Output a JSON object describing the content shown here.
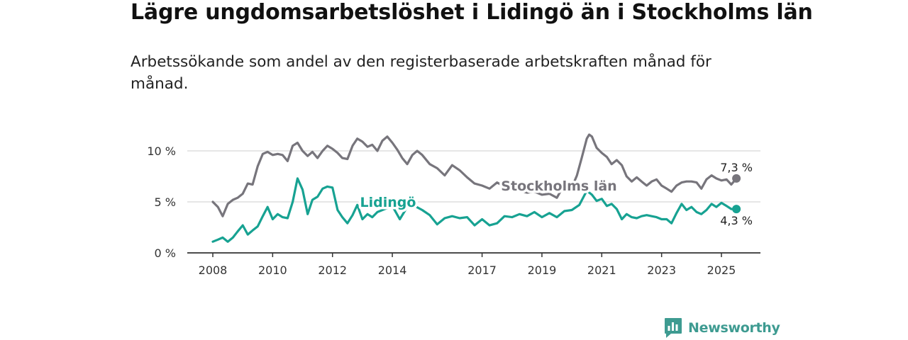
{
  "header": {
    "title": "Lägre ungdomsarbetslöshet i Lidingö än i Stockholms län",
    "subtitle": "Arbetssökande som andel av den registerbaserade arbetskraften månad för månad."
  },
  "brand": {
    "name": "Newsworthy",
    "logo_icon": "newsworthy-chart-bubble-icon",
    "color": "#3e9b91"
  },
  "chart_data": {
    "type": "line",
    "xlim": [
      2007.8,
      2025.9
    ],
    "ylim": [
      0,
      10
    ],
    "x_ticks": [
      {
        "value": 2008,
        "label": "2008"
      },
      {
        "value": 2010,
        "label": "2010"
      },
      {
        "value": 2012,
        "label": "2012"
      },
      {
        "value": 2014,
        "label": "2014"
      },
      {
        "value": 2017,
        "label": "2017"
      },
      {
        "value": 2019,
        "label": "2019"
      },
      {
        "value": 2021,
        "label": "2021"
      },
      {
        "value": 2023,
        "label": "2023"
      },
      {
        "value": 2025,
        "label": "2025"
      }
    ],
    "y_ticks": [
      {
        "value": 0,
        "label": "0 %"
      },
      {
        "value": 5,
        "label": "5 %"
      },
      {
        "value": 10,
        "label": "10 %"
      }
    ],
    "grid": true,
    "series": [
      {
        "name": "Stockholms län",
        "color": "#77757c",
        "end_label": "7,3 %",
        "points": [
          [
            2008.0,
            5.0
          ],
          [
            2008.17,
            4.5
          ],
          [
            2008.33,
            3.6
          ],
          [
            2008.5,
            4.8
          ],
          [
            2008.67,
            5.2
          ],
          [
            2008.83,
            5.4
          ],
          [
            2009.0,
            5.8
          ],
          [
            2009.17,
            6.8
          ],
          [
            2009.33,
            6.7
          ],
          [
            2009.5,
            8.5
          ],
          [
            2009.67,
            9.7
          ],
          [
            2009.83,
            9.9
          ],
          [
            2010.0,
            9.6
          ],
          [
            2010.17,
            9.7
          ],
          [
            2010.33,
            9.6
          ],
          [
            2010.5,
            9.0
          ],
          [
            2010.67,
            10.5
          ],
          [
            2010.83,
            10.8
          ],
          [
            2011.0,
            10.0
          ],
          [
            2011.17,
            9.5
          ],
          [
            2011.33,
            9.9
          ],
          [
            2011.5,
            9.3
          ],
          [
            2011.67,
            10.0
          ],
          [
            2011.83,
            10.5
          ],
          [
            2012.0,
            10.2
          ],
          [
            2012.17,
            9.8
          ],
          [
            2012.33,
            9.3
          ],
          [
            2012.5,
            9.2
          ],
          [
            2012.67,
            10.5
          ],
          [
            2012.83,
            11.2
          ],
          [
            2013.0,
            10.9
          ],
          [
            2013.17,
            10.4
          ],
          [
            2013.33,
            10.6
          ],
          [
            2013.5,
            10.0
          ],
          [
            2013.67,
            11.0
          ],
          [
            2013.83,
            11.4
          ],
          [
            2014.0,
            10.8
          ],
          [
            2014.17,
            10.1
          ],
          [
            2014.33,
            9.3
          ],
          [
            2014.5,
            8.7
          ],
          [
            2014.67,
            9.6
          ],
          [
            2014.83,
            10.0
          ],
          [
            2015.0,
            9.6
          ],
          [
            2015.25,
            8.7
          ],
          [
            2015.5,
            8.3
          ],
          [
            2015.75,
            7.6
          ],
          [
            2016.0,
            8.6
          ],
          [
            2016.25,
            8.1
          ],
          [
            2016.5,
            7.4
          ],
          [
            2016.75,
            6.8
          ],
          [
            2017.0,
            6.6
          ],
          [
            2017.25,
            6.3
          ],
          [
            2017.5,
            6.9
          ],
          [
            2017.75,
            6.5
          ],
          [
            2018.0,
            6.3
          ],
          [
            2018.25,
            6.1
          ],
          [
            2018.5,
            5.9
          ],
          [
            2018.75,
            6.0
          ],
          [
            2019.0,
            5.7
          ],
          [
            2019.25,
            5.8
          ],
          [
            2019.5,
            5.4
          ],
          [
            2019.67,
            6.3
          ],
          [
            2019.83,
            6.9
          ],
          [
            2020.0,
            6.4
          ],
          [
            2020.17,
            7.6
          ],
          [
            2020.33,
            9.3
          ],
          [
            2020.5,
            11.2
          ],
          [
            2020.58,
            11.6
          ],
          [
            2020.67,
            11.4
          ],
          [
            2020.83,
            10.3
          ],
          [
            2021.0,
            9.8
          ],
          [
            2021.17,
            9.4
          ],
          [
            2021.33,
            8.7
          ],
          [
            2021.5,
            9.1
          ],
          [
            2021.67,
            8.6
          ],
          [
            2021.83,
            7.5
          ],
          [
            2022.0,
            7.0
          ],
          [
            2022.17,
            7.4
          ],
          [
            2022.33,
            7.0
          ],
          [
            2022.5,
            6.6
          ],
          [
            2022.67,
            7.0
          ],
          [
            2022.83,
            7.2
          ],
          [
            2023.0,
            6.6
          ],
          [
            2023.17,
            6.3
          ],
          [
            2023.33,
            6.0
          ],
          [
            2023.5,
            6.6
          ],
          [
            2023.67,
            6.9
          ],
          [
            2023.83,
            7.0
          ],
          [
            2024.0,
            7.0
          ],
          [
            2024.17,
            6.9
          ],
          [
            2024.33,
            6.3
          ],
          [
            2024.5,
            7.2
          ],
          [
            2024.67,
            7.6
          ],
          [
            2024.83,
            7.3
          ],
          [
            2025.0,
            7.1
          ],
          [
            2025.17,
            7.2
          ],
          [
            2025.33,
            6.7
          ],
          [
            2025.5,
            7.3
          ]
        ]
      },
      {
        "name": "Lidingö",
        "color": "#17a292",
        "end_label": "4,3 %",
        "points": [
          [
            2008.0,
            1.1
          ],
          [
            2008.17,
            1.3
          ],
          [
            2008.33,
            1.5
          ],
          [
            2008.5,
            1.1
          ],
          [
            2008.67,
            1.5
          ],
          [
            2008.83,
            2.1
          ],
          [
            2009.0,
            2.7
          ],
          [
            2009.17,
            1.8
          ],
          [
            2009.33,
            2.2
          ],
          [
            2009.5,
            2.6
          ],
          [
            2009.67,
            3.6
          ],
          [
            2009.83,
            4.5
          ],
          [
            2010.0,
            3.3
          ],
          [
            2010.17,
            3.8
          ],
          [
            2010.33,
            3.5
          ],
          [
            2010.5,
            3.4
          ],
          [
            2010.67,
            5.0
          ],
          [
            2010.83,
            7.3
          ],
          [
            2011.0,
            6.2
          ],
          [
            2011.17,
            3.8
          ],
          [
            2011.33,
            5.2
          ],
          [
            2011.5,
            5.5
          ],
          [
            2011.67,
            6.3
          ],
          [
            2011.83,
            6.5
          ],
          [
            2012.0,
            6.4
          ],
          [
            2012.17,
            4.2
          ],
          [
            2012.33,
            3.5
          ],
          [
            2012.5,
            2.9
          ],
          [
            2012.67,
            3.7
          ],
          [
            2012.83,
            4.7
          ],
          [
            2013.0,
            3.3
          ],
          [
            2013.17,
            3.8
          ],
          [
            2013.33,
            3.5
          ],
          [
            2013.5,
            4.0
          ],
          [
            2014.0,
            4.6
          ],
          [
            2014.25,
            3.3
          ],
          [
            2014.5,
            4.5
          ],
          [
            2014.75,
            4.6
          ],
          [
            2015.0,
            4.2
          ],
          [
            2015.25,
            3.7
          ],
          [
            2015.5,
            2.8
          ],
          [
            2015.75,
            3.4
          ],
          [
            2016.0,
            3.6
          ],
          [
            2016.25,
            3.4
          ],
          [
            2016.5,
            3.5
          ],
          [
            2016.75,
            2.7
          ],
          [
            2017.0,
            3.3
          ],
          [
            2017.25,
            2.7
          ],
          [
            2017.5,
            2.9
          ],
          [
            2017.75,
            3.6
          ],
          [
            2018.0,
            3.5
          ],
          [
            2018.25,
            3.8
          ],
          [
            2018.5,
            3.6
          ],
          [
            2018.75,
            4.0
          ],
          [
            2019.0,
            3.5
          ],
          [
            2019.25,
            3.9
          ],
          [
            2019.5,
            3.5
          ],
          [
            2019.75,
            4.1
          ],
          [
            2020.0,
            4.2
          ],
          [
            2020.25,
            4.7
          ],
          [
            2020.5,
            6.1
          ],
          [
            2020.67,
            5.7
          ],
          [
            2020.83,
            5.1
          ],
          [
            2021.0,
            5.3
          ],
          [
            2021.17,
            4.6
          ],
          [
            2021.33,
            4.8
          ],
          [
            2021.5,
            4.3
          ],
          [
            2021.67,
            3.3
          ],
          [
            2021.83,
            3.8
          ],
          [
            2022.0,
            3.5
          ],
          [
            2022.17,
            3.4
          ],
          [
            2022.33,
            3.6
          ],
          [
            2022.5,
            3.7
          ],
          [
            2022.67,
            3.6
          ],
          [
            2022.83,
            3.5
          ],
          [
            2023.0,
            3.3
          ],
          [
            2023.17,
            3.3
          ],
          [
            2023.33,
            2.9
          ],
          [
            2023.5,
            3.9
          ],
          [
            2023.67,
            4.8
          ],
          [
            2023.83,
            4.2
          ],
          [
            2024.0,
            4.5
          ],
          [
            2024.17,
            4.0
          ],
          [
            2024.33,
            3.8
          ],
          [
            2024.5,
            4.2
          ],
          [
            2024.67,
            4.8
          ],
          [
            2024.83,
            4.5
          ],
          [
            2025.0,
            4.9
          ],
          [
            2025.17,
            4.6
          ],
          [
            2025.33,
            4.3
          ],
          [
            2025.5,
            4.3
          ]
        ]
      }
    ]
  }
}
